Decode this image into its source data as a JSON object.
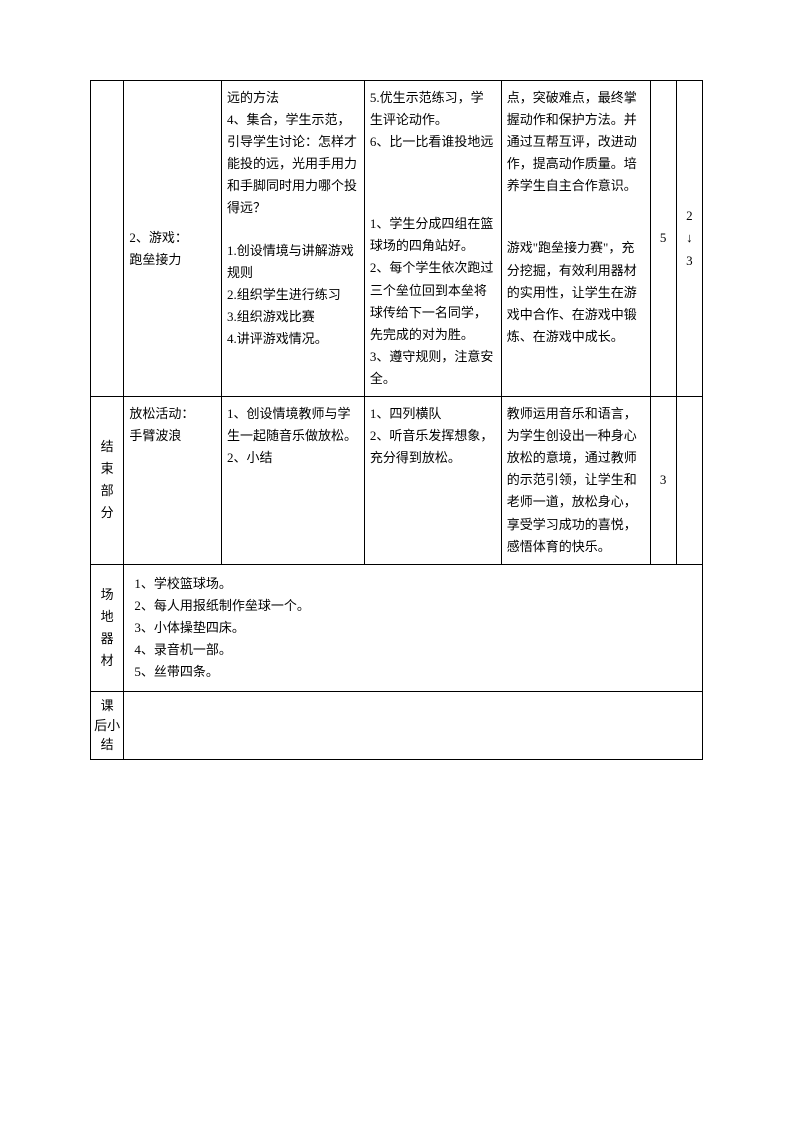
{
  "row1": {
    "content_a": "",
    "content_b": "2、游戏：\n跑垒接力",
    "teacher_a": "远的方法\n4、集合，学生示范，引导学生讨论：怎样才能投的远，光用手用力和手脚同时用力哪个投得远？",
    "teacher_b": "1.创设情境与讲解游戏规则\n2.组织学生进行练习\n3.组织游戏比赛\n4.讲评游戏情况。",
    "student_a": "5.优生示范练习，学生评论动作。\n6、比一比看谁投地远",
    "student_b": "1、学生分成四组在篮球场的四角站好。\n2、每个学生依次跑过三个垒位回到本垒将球传给下一名同学，先完成的对为胜。\n3、遵守规则，注意安全。",
    "design_a": "点，突破难点，最终掌握动作和保护方法。并通过互帮互评，改进动作，提高动作质量。培养学生自主合作意识。",
    "design_b": "游戏\"跑垒接力赛\"，充分挖掘，有效利用器材的实用性，让学生在游戏中合作、在游戏中锻炼、在游戏中成长。",
    "num1": "5",
    "num2": "2\n↓\n3"
  },
  "row2": {
    "label": "结束部分",
    "content": "放松活动：\n手臂波浪",
    "teacher": "1、创设情境教师与学生一起随音乐做放松。\n2、小结",
    "student": "1、四列横队\n2、听音乐发挥想象，充分得到放松。",
    "design": "教师运用音乐和语言，为学生创设出一种身心放松的意境，通过教师的示范引领，让学生和老师一道，放松身心，享受学习成功的喜悦，感悟体育的快乐。",
    "num1": "3",
    "num2": ""
  },
  "row3": {
    "label": "场地器材",
    "content": "1、学校篮球场。\n2、每人用报纸制作垒球一个。\n3、小体操垫四床。\n4、录音机一部。\n5、丝带四条。"
  },
  "row4": {
    "label": "课 后小 结",
    "content": ""
  }
}
